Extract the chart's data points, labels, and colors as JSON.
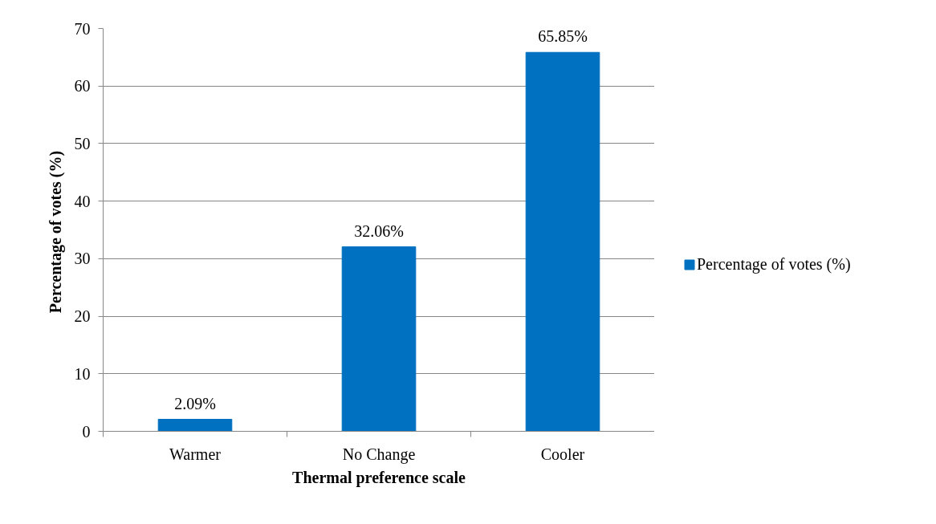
{
  "chart_data": {
    "type": "bar",
    "xlabel": "Thermal preference scale",
    "ylabel": "Percentage of votes  (%)",
    "categories": [
      "Warmer",
      "No Change",
      "Cooler"
    ],
    "series": [
      {
        "name": "Percentage of votes (%)",
        "color": "#0070c0",
        "values": [
          2.09,
          32.06,
          65.85
        ],
        "value_labels": [
          "2.09%",
          "32.06%",
          "65.85%"
        ]
      }
    ],
    "ylim": [
      0,
      70
    ],
    "yticks": [
      0,
      10,
      20,
      30,
      40,
      50,
      60,
      70
    ],
    "grid": "y",
    "legend": "right"
  }
}
